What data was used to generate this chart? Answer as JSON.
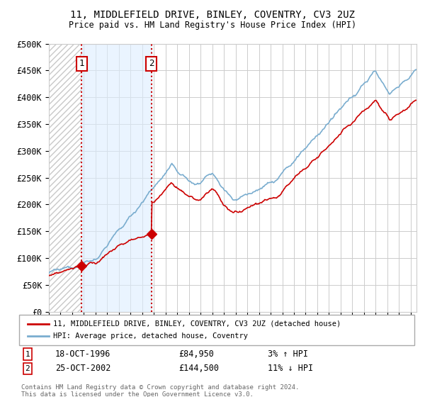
{
  "title": "11, MIDDLEFIELD DRIVE, BINLEY, COVENTRY, CV3 2UZ",
  "subtitle": "Price paid vs. HM Land Registry's House Price Index (HPI)",
  "legend_line1": "11, MIDDLEFIELD DRIVE, BINLEY, COVENTRY, CV3 2UZ (detached house)",
  "legend_line2": "HPI: Average price, detached house, Coventry",
  "sale1_date": "18-OCT-1996",
  "sale1_price": 84950,
  "sale1_label": "1",
  "sale1_pct": "3% ↑ HPI",
  "sale2_date": "25-OCT-2002",
  "sale2_price": 144500,
  "sale2_label": "2",
  "sale2_pct": "11% ↓ HPI",
  "footer": "Contains HM Land Registry data © Crown copyright and database right 2024.\nThis data is licensed under the Open Government Licence v3.0.",
  "ylim": [
    0,
    500000
  ],
  "yticks": [
    0,
    50000,
    100000,
    150000,
    200000,
    250000,
    300000,
    350000,
    400000,
    450000,
    500000
  ],
  "ytick_labels": [
    "£0",
    "£50K",
    "£100K",
    "£150K",
    "£200K",
    "£250K",
    "£300K",
    "£350K",
    "£400K",
    "£450K",
    "£500K"
  ],
  "xstart": 1994.0,
  "xend": 2025.5,
  "sale1_x": 1996.8,
  "sale2_x": 2002.8,
  "red_color": "#cc0000",
  "blue_color": "#7aadcf",
  "bg_color": "#ffffff",
  "grid_color": "#cccccc",
  "shade_color": "#ddeeff",
  "hatch_color": "#c8c8c8"
}
